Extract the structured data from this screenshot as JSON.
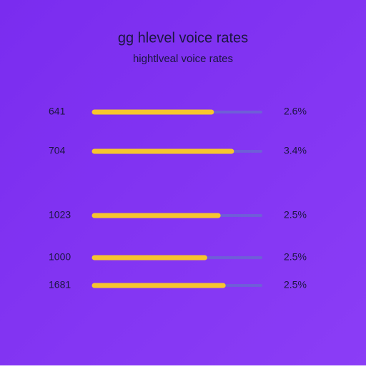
{
  "header": {
    "title": "gg hlevel voice rates",
    "subtitle": "hightlveal voice rates"
  },
  "rows": [
    {
      "label": "641",
      "fill": 0.7,
      "value_label": "2.6%"
    },
    {
      "label": "704",
      "fill": 0.82,
      "value_label": "3.4%"
    },
    {
      "label": "1023",
      "fill": 0.74,
      "value_label": "2.5%"
    },
    {
      "label": "1000",
      "fill": 0.66,
      "value_label": "2.5%"
    },
    {
      "label": "1681",
      "fill": 0.77,
      "value_label": "2.5%"
    }
  ]
}
